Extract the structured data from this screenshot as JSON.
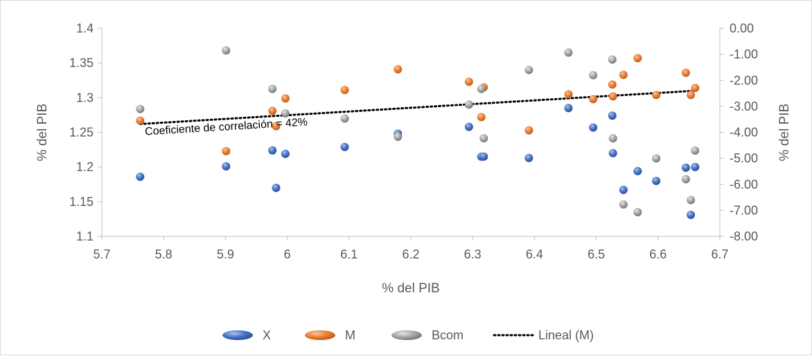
{
  "chart_data": {
    "type": "scatter",
    "title": "",
    "xlabel": "% del PIB",
    "ylabel": "% del PIB",
    "y2label": "% del PIB",
    "xlim": [
      5.7,
      6.7
    ],
    "ylim": [
      1.1,
      1.4
    ],
    "y2lim": [
      -8.0,
      0.0
    ],
    "x_ticks": [
      "5.7",
      "5.8",
      "5.9",
      "6",
      "6.1",
      "6.2",
      "6.3",
      "6.4",
      "6.5",
      "6.6",
      "6.7"
    ],
    "y_ticks": [
      "1.1",
      "1.15",
      "1.2",
      "1.25",
      "1.3",
      "1.35",
      "1.4"
    ],
    "y2_ticks": [
      "-8.00",
      "-7.00",
      "-6.00",
      "-5.00",
      "-4.00",
      "-3.00",
      "-2.00",
      "-1.00",
      "0.00"
    ],
    "grid": false,
    "legend_position": "bottom",
    "annotation": "Coeficiente de correlación = 42%",
    "series": [
      {
        "name": "X",
        "axis": "left",
        "color": "#4472c4",
        "points": [
          {
            "x": 5.762,
            "y": 1.186
          },
          {
            "x": 5.901,
            "y": 1.201
          },
          {
            "x": 5.976,
            "y": 1.224
          },
          {
            "x": 5.982,
            "y": 1.17
          },
          {
            "x": 5.997,
            "y": 1.219
          },
          {
            "x": 6.093,
            "y": 1.229
          },
          {
            "x": 6.179,
            "y": 1.248
          },
          {
            "x": 6.294,
            "y": 1.258
          },
          {
            "x": 6.314,
            "y": 1.215
          },
          {
            "x": 6.318,
            "y": 1.215
          },
          {
            "x": 6.391,
            "y": 1.213
          },
          {
            "x": 6.455,
            "y": 1.285
          },
          {
            "x": 6.495,
            "y": 1.257
          },
          {
            "x": 6.526,
            "y": 1.274
          },
          {
            "x": 6.527,
            "y": 1.22
          },
          {
            "x": 6.544,
            "y": 1.167
          },
          {
            "x": 6.567,
            "y": 1.194
          },
          {
            "x": 6.597,
            "y": 1.18
          },
          {
            "x": 6.645,
            "y": 1.199
          },
          {
            "x": 6.653,
            "y": 1.131
          },
          {
            "x": 6.66,
            "y": 1.2
          }
        ]
      },
      {
        "name": "M",
        "axis": "left",
        "color": "#ed7d31",
        "points": [
          {
            "x": 5.762,
            "y": 1.267
          },
          {
            "x": 5.901,
            "y": 1.223
          },
          {
            "x": 5.976,
            "y": 1.281
          },
          {
            "x": 5.982,
            "y": 1.259
          },
          {
            "x": 5.997,
            "y": 1.299
          },
          {
            "x": 6.093,
            "y": 1.311
          },
          {
            "x": 6.179,
            "y": 1.341
          },
          {
            "x": 6.294,
            "y": 1.323
          },
          {
            "x": 6.314,
            "y": 1.272
          },
          {
            "x": 6.318,
            "y": 1.315
          },
          {
            "x": 6.391,
            "y": 1.253
          },
          {
            "x": 6.455,
            "y": 1.305
          },
          {
            "x": 6.495,
            "y": 1.298
          },
          {
            "x": 6.526,
            "y": 1.319
          },
          {
            "x": 6.527,
            "y": 1.302
          },
          {
            "x": 6.544,
            "y": 1.333
          },
          {
            "x": 6.567,
            "y": 1.357
          },
          {
            "x": 6.597,
            "y": 1.304
          },
          {
            "x": 6.645,
            "y": 1.336
          },
          {
            "x": 6.653,
            "y": 1.304
          },
          {
            "x": 6.66,
            "y": 1.314
          }
        ]
      },
      {
        "name": "Bcom",
        "axis": "right",
        "color": "#a5a5a5",
        "points": [
          {
            "x": 5.762,
            "y": -3.1
          },
          {
            "x": 5.901,
            "y": -0.85
          },
          {
            "x": 5.976,
            "y": -2.33
          },
          {
            "x": 5.997,
            "y": -3.27
          },
          {
            "x": 6.093,
            "y": -3.47
          },
          {
            "x": 6.179,
            "y": -4.17
          },
          {
            "x": 6.294,
            "y": -2.93
          },
          {
            "x": 6.314,
            "y": -2.33
          },
          {
            "x": 6.318,
            "y": -4.23
          },
          {
            "x": 6.391,
            "y": -1.6
          },
          {
            "x": 6.455,
            "y": -0.93
          },
          {
            "x": 6.495,
            "y": -1.8
          },
          {
            "x": 6.526,
            "y": -1.2
          },
          {
            "x": 6.527,
            "y": -4.23
          },
          {
            "x": 6.544,
            "y": -6.77
          },
          {
            "x": 6.567,
            "y": -7.07
          },
          {
            "x": 6.597,
            "y": -5.0
          },
          {
            "x": 6.645,
            "y": -5.8
          },
          {
            "x": 6.653,
            "y": -6.6
          },
          {
            "x": 6.66,
            "y": -4.7
          }
        ]
      }
    ],
    "trendline": {
      "name": "Lineal (M)",
      "series": "M",
      "type": "linear",
      "color": "#000000",
      "x": [
        5.762,
        6.66
      ],
      "y": [
        1.262,
        1.31
      ]
    }
  }
}
